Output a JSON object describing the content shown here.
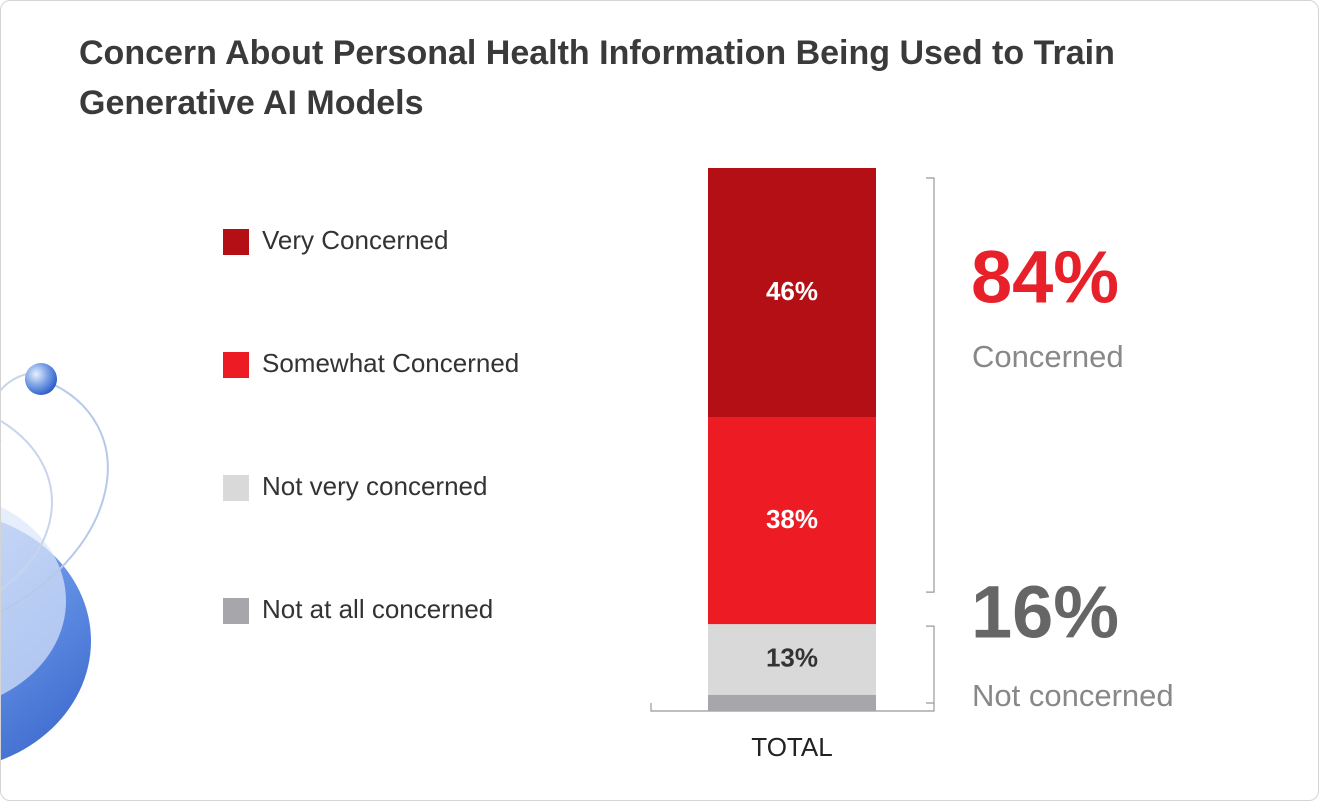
{
  "chart_data": {
    "type": "stacked-bar",
    "title": "Concern About Personal Health Information Being Used to Train Generative AI Models",
    "categories": [
      "TOTAL"
    ],
    "series": [
      {
        "name": "Very Concerned",
        "color": "#b50f16",
        "values": [
          46
        ],
        "value_labels": [
          "46%"
        ]
      },
      {
        "name": "Somewhat Concerned",
        "color": "#ed1c24",
        "values": [
          38
        ],
        "value_labels": [
          "38%"
        ]
      },
      {
        "name": "Not very concerned",
        "color": "#d9d9d9",
        "values": [
          13
        ],
        "value_labels": [
          "13%"
        ]
      },
      {
        "name": "Not at all concerned",
        "color": "#a6a6ab",
        "values": [
          3
        ]
      }
    ],
    "ylim": [
      0,
      100
    ],
    "annotations": [
      {
        "value_label": "84%",
        "text": "Concerned",
        "color": "#e8202a"
      },
      {
        "value_label": "16%",
        "text": "Not concerned",
        "color": "#666666"
      }
    ]
  }
}
